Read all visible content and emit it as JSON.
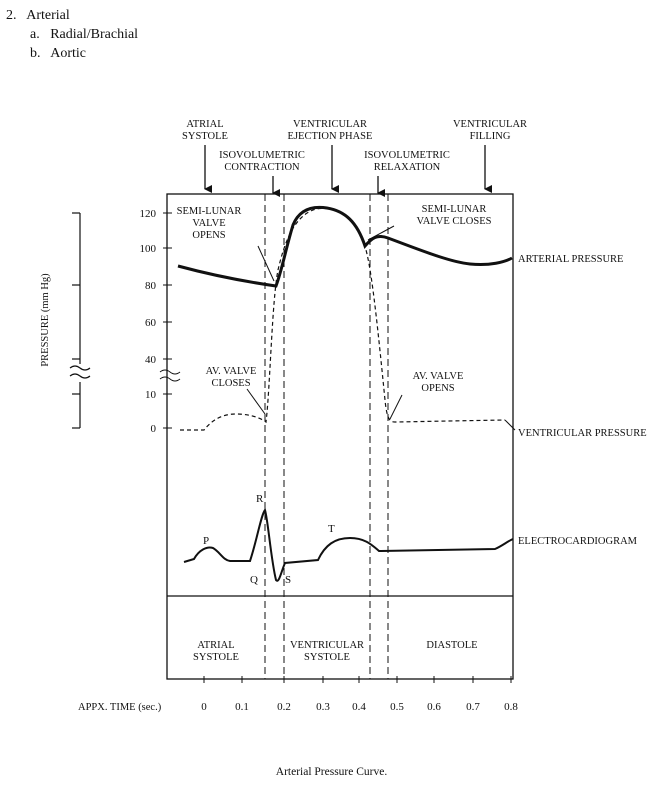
{
  "outline": {
    "item_number": "2.",
    "item_title": "Arterial",
    "sub_a_marker": "a.",
    "sub_a_text": "Radial/Brachial",
    "sub_b_marker": "b.",
    "sub_b_text": "Aortic"
  },
  "phases_top": {
    "atrial_systole": [
      "ATRIAL",
      "SYSTOLE"
    ],
    "isovolumetric_contraction": [
      "ISOVOLUMETRIC",
      "CONTRACTION"
    ],
    "ventricular_ejection": [
      "VENTRICULAR",
      "EJECTION PHASE"
    ],
    "isovolumetric_relaxation": [
      "ISOVOLUMETRIC",
      "RELAXATION"
    ],
    "ventricular_filling": [
      "VENTRICULAR",
      "FILLING"
    ]
  },
  "annotations": {
    "semilunar_opens": [
      "SEMI-LUNAR",
      "VALVE",
      "OPENS"
    ],
    "semilunar_closes": [
      "SEMI-LUNAR",
      "VALVE CLOSES"
    ],
    "av_closes": [
      "AV. VALVE",
      "CLOSES"
    ],
    "av_opens": [
      "AV. VALVE",
      "OPENS"
    ]
  },
  "curve_labels": {
    "arterial": "ARTERIAL PRESSURE",
    "ventricular": "VENTRICULAR PRESSURE",
    "ecg": "ELECTROCARDIOGRAM"
  },
  "ecg_waves": {
    "p": "P",
    "q": "Q",
    "r": "R",
    "s": "S",
    "t": "T"
  },
  "y_axis": {
    "label": "PRESSURE (mm Hg)",
    "ticks": [
      "120",
      "100",
      "80",
      "60",
      "40",
      "10",
      "0"
    ]
  },
  "x_axis": {
    "label": "APPX. TIME (sec.)",
    "ticks": [
      "0",
      "0.1",
      "0.2",
      "0.3",
      "0.4",
      "0.5",
      "0.6",
      "0.7",
      "0.8"
    ]
  },
  "phases_bottom": {
    "atrial_systole": [
      "ATRIAL",
      "SYSTOLE"
    ],
    "ventricular_systole": [
      "VENTRICULAR",
      "SYSTOLE"
    ],
    "diastole": [
      "DIASTOLE"
    ]
  },
  "caption": "Arterial Pressure Curve."
}
